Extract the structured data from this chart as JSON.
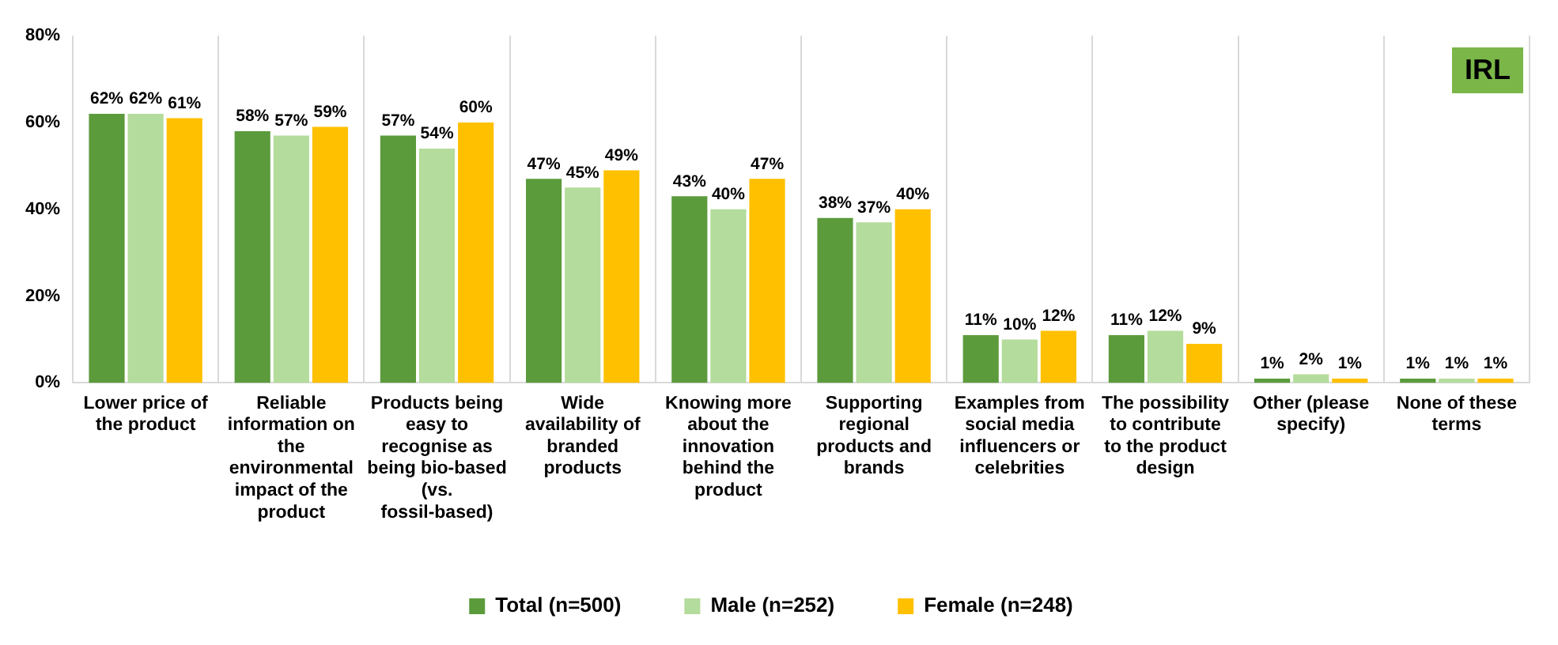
{
  "chart_data": {
    "type": "bar",
    "annotations": [
      "IRL"
    ],
    "categories": [
      "Lower price of the product",
      "Reliable information on the environmental impact of the product",
      "Products being easy to recognise as being bio-based (vs. fossil-based)",
      "Wide availability of branded products",
      "Knowing more about the innovation behind the product",
      "Supporting regional products and brands",
      "Examples from social media influencers or celebrities",
      "The possibility to contribute to the product design",
      "Other (please specify)",
      "None of these terms"
    ],
    "series": [
      {
        "name": "Total (n=500)",
        "color": "#5b9b3c",
        "values": [
          62,
          58,
          57,
          47,
          43,
          38,
          11,
          11,
          1,
          1
        ],
        "value_labels": [
          "62%",
          "58%",
          "57%",
          "47%",
          "43%",
          "38%",
          "11%",
          "11%",
          "1%",
          "1%"
        ]
      },
      {
        "name": "Male (n=252)",
        "color": "#b4dc9c",
        "values": [
          62,
          57,
          54,
          45,
          40,
          37,
          10,
          12,
          2,
          1
        ],
        "value_labels": [
          "62%",
          "57%",
          "54%",
          "45%",
          "40%",
          "37%",
          "10%",
          "12%",
          "2%",
          "1%"
        ]
      },
      {
        "name": "Female (n=248)",
        "color": "#ffc000",
        "values": [
          61,
          59,
          60,
          49,
          47,
          40,
          12,
          9,
          1,
          1
        ],
        "value_labels": [
          "61%",
          "59%",
          "60%",
          "49%",
          "47%",
          "40%",
          "12%",
          "9%",
          "1%",
          "1%"
        ]
      }
    ],
    "ylim": [
      0,
      80
    ],
    "yticks": [
      {
        "value": 0,
        "label": "0%"
      },
      {
        "value": 20,
        "label": "20%"
      },
      {
        "value": 40,
        "label": "40%"
      },
      {
        "value": 60,
        "label": "60%"
      },
      {
        "value": 80,
        "label": "80%"
      }
    ],
    "grid": "x",
    "legend": "bottom"
  }
}
